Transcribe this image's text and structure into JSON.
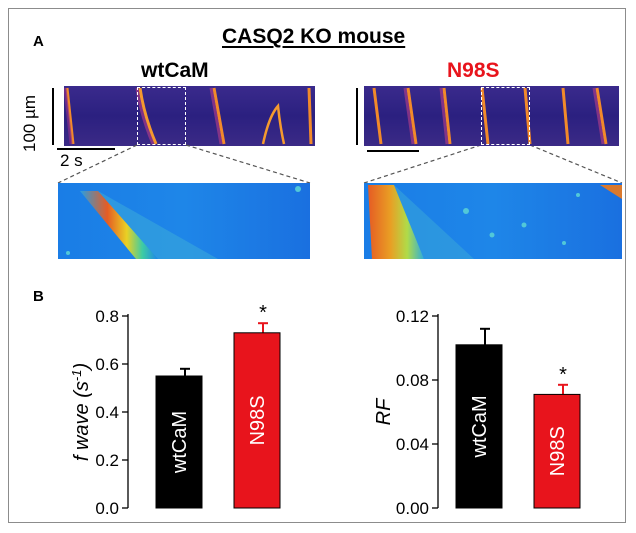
{
  "panel_a": {
    "letter": "A",
    "title": "CASQ2 KO mouse",
    "left_condition": "wtCaM",
    "right_condition": "N98S",
    "scale_y": "100 µm",
    "scale_x": "2 s"
  },
  "panel_b": {
    "letter": "B"
  },
  "colors": {
    "wtCaM": "#000000",
    "N98S": "#e8141c",
    "kymo_background": "#2a1f7a",
    "zoom_background": "#1a6fe0"
  },
  "chart_data": [
    {
      "type": "bar",
      "categories": [
        "wtCaM",
        "N98S"
      ],
      "values": [
        0.55,
        0.73
      ],
      "errors": [
        0.03,
        0.04
      ],
      "significance": [
        "",
        "*"
      ],
      "ylabel": "f wave (s-1)",
      "ylabel_main": "f wave (s",
      "ylabel_sup": "-1",
      "ylabel_close": ")",
      "ylim": [
        0.0,
        0.8
      ],
      "yticks": [
        "0.0",
        "0.2",
        "0.4",
        "0.6",
        "0.8"
      ],
      "colors": [
        "#000000",
        "#e8141c"
      ]
    },
    {
      "type": "bar",
      "categories": [
        "wtCaM",
        "N98S"
      ],
      "values": [
        0.102,
        0.071
      ],
      "errors": [
        0.01,
        0.006
      ],
      "significance": [
        "",
        "*"
      ],
      "ylabel": "RF",
      "ylim": [
        0.0,
        0.12
      ],
      "yticks": [
        "0.00",
        "0.04",
        "0.08",
        "0.12"
      ],
      "colors": [
        "#000000",
        "#e8141c"
      ]
    }
  ]
}
